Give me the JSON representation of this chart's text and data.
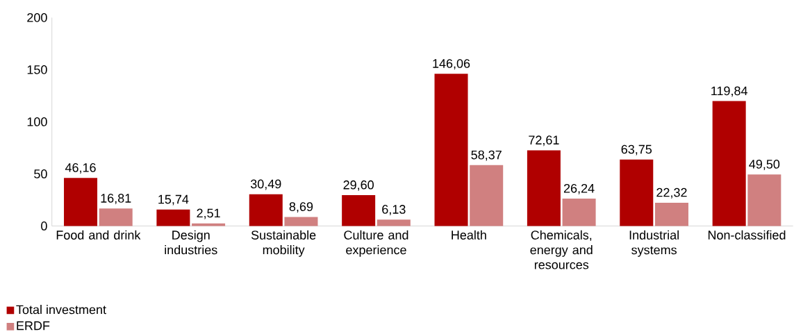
{
  "chart_data": {
    "type": "bar",
    "categories": [
      "Food and drink",
      "Design industries",
      "Sustainable mobility",
      "Culture and experience",
      "Health",
      "Chemicals, energy and resources",
      "Industrial systems",
      "Non-classified"
    ],
    "series": [
      {
        "name": "Total investment",
        "color": "#b00000",
        "values": [
          46.16,
          15.74,
          30.49,
          29.6,
          146.06,
          72.61,
          63.75,
          119.84
        ],
        "value_labels": [
          "46,16",
          "15,74",
          "30,49",
          "29,60",
          "146,06",
          "72,61",
          "63,75",
          "119,84"
        ]
      },
      {
        "name": "ERDF",
        "color": "#d08080",
        "values": [
          16.81,
          2.51,
          8.69,
          6.13,
          58.37,
          26.24,
          22.32,
          49.5
        ],
        "value_labels": [
          "16,81",
          "2,51",
          "8,69",
          "6,13",
          "58,37",
          "26,24",
          "22,32",
          "49,50"
        ]
      }
    ],
    "ylim": [
      0,
      200
    ],
    "yticks": [
      0,
      50,
      100,
      150,
      200
    ],
    "legend": "bottom left"
  }
}
